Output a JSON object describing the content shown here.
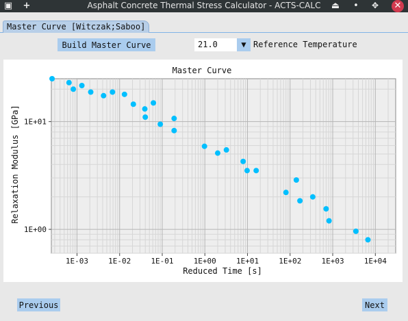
{
  "window": {
    "title": "Asphalt Concrete Thermal Stress Calculator - ACTS-CALC",
    "menu_icon": "▣",
    "add_icon": "+",
    "pin_icon": "⏏",
    "minimize_icon": "•",
    "maximize_icon": "✥",
    "close_icon": "✕"
  },
  "tabs": [
    {
      "label": "Master Curve [Witczak;Saboo]"
    }
  ],
  "toolbar": {
    "build_button": "Build Master Curve",
    "reference_temperature_value": "21.0",
    "dropdown_arrow": "▼",
    "reference_temperature_label": "Reference Temperature"
  },
  "chart_data": {
    "type": "scatter",
    "title": "Master Curve",
    "xlabel": "Reduced Time [s]",
    "ylabel": "Relaxation Modulus [GPa]",
    "x_scale": "log",
    "y_scale": "log",
    "xlim": [
      0.00025,
      30000
    ],
    "ylim": [
      0.6,
      25
    ],
    "x_ticks": [
      {
        "value": 0.001,
        "label": "1E-03"
      },
      {
        "value": 0.01,
        "label": "1E-02"
      },
      {
        "value": 0.1,
        "label": "1E-01"
      },
      {
        "value": 1,
        "label": "1E+00"
      },
      {
        "value": 10,
        "label": "1E+01"
      },
      {
        "value": 100,
        "label": "1E+02"
      },
      {
        "value": 1000,
        "label": "1E+03"
      },
      {
        "value": 10000,
        "label": "1E+04"
      }
    ],
    "y_ticks": [
      {
        "value": 1,
        "label": "1E+00"
      },
      {
        "value": 10,
        "label": "1E+01"
      }
    ],
    "grid": true,
    "marker_color": "#00bfff",
    "points": [
      {
        "x": 0.00026,
        "y": 25.0
      },
      {
        "x": 0.00065,
        "y": 23.0
      },
      {
        "x": 0.00082,
        "y": 20.0
      },
      {
        "x": 0.0013,
        "y": 21.6
      },
      {
        "x": 0.0021,
        "y": 18.8
      },
      {
        "x": 0.0042,
        "y": 17.4
      },
      {
        "x": 0.0068,
        "y": 18.8
      },
      {
        "x": 0.013,
        "y": 17.9
      },
      {
        "x": 0.021,
        "y": 14.5
      },
      {
        "x": 0.039,
        "y": 13.1
      },
      {
        "x": 0.062,
        "y": 14.9
      },
      {
        "x": 0.04,
        "y": 11.0
      },
      {
        "x": 0.09,
        "y": 9.45
      },
      {
        "x": 0.19,
        "y": 10.7
      },
      {
        "x": 0.19,
        "y": 8.25
      },
      {
        "x": 0.98,
        "y": 5.9
      },
      {
        "x": 2.0,
        "y": 5.1
      },
      {
        "x": 3.2,
        "y": 5.46
      },
      {
        "x": 7.9,
        "y": 4.27
      },
      {
        "x": 9.8,
        "y": 3.51
      },
      {
        "x": 16.0,
        "y": 3.51
      },
      {
        "x": 80.0,
        "y": 2.2
      },
      {
        "x": 140.0,
        "y": 2.87
      },
      {
        "x": 170.0,
        "y": 1.84
      },
      {
        "x": 340.0,
        "y": 2.0
      },
      {
        "x": 700.0,
        "y": 1.55
      },
      {
        "x": 820.0,
        "y": 1.2
      },
      {
        "x": 3500.0,
        "y": 0.96
      },
      {
        "x": 6700.0,
        "y": 0.8
      }
    ]
  },
  "footer": {
    "previous_button": "Previous",
    "next_button": "Next"
  }
}
